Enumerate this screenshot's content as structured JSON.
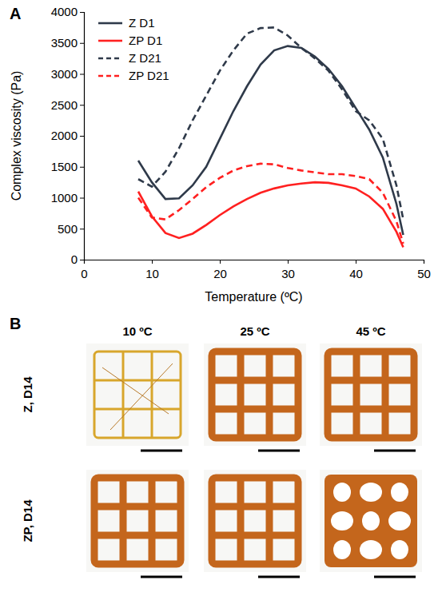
{
  "chart_data": {
    "type": "line",
    "panel_label": "A",
    "x_label": "Temperature (ºC)",
    "y_label": "Complex viscosity (Pa)",
    "x": [
      8,
      10,
      12,
      14,
      16,
      18,
      20,
      22,
      24,
      26,
      28,
      30,
      32,
      34,
      36,
      38,
      40,
      42,
      44,
      46,
      47
    ],
    "series": [
      {
        "name": "Z D1",
        "color": "#2f3a4a",
        "line_style": "solid",
        "values": [
          1600,
          1250,
          980,
          990,
          1200,
          1500,
          1950,
          2400,
          2800,
          3150,
          3380,
          3450,
          3420,
          3280,
          3080,
          2800,
          2450,
          2100,
          1650,
          900,
          400
        ]
      },
      {
        "name": "ZP D1",
        "color": "#ff2020",
        "line_style": "solid",
        "values": [
          1100,
          700,
          430,
          350,
          420,
          560,
          720,
          860,
          980,
          1080,
          1150,
          1200,
          1230,
          1250,
          1240,
          1200,
          1150,
          1020,
          820,
          450,
          200
        ]
      },
      {
        "name": "Z D21",
        "color": "#2f3a4a",
        "line_style": "dashed",
        "values": [
          1300,
          1180,
          1420,
          1800,
          2250,
          2650,
          3050,
          3380,
          3650,
          3740,
          3750,
          3620,
          3420,
          3250,
          3050,
          2750,
          2400,
          2250,
          1950,
          1200,
          650
        ]
      },
      {
        "name": "ZP D21",
        "color": "#ff2020",
        "line_style": "dashed",
        "values": [
          1000,
          680,
          650,
          800,
          980,
          1170,
          1320,
          1440,
          1510,
          1550,
          1540,
          1480,
          1440,
          1410,
          1380,
          1380,
          1350,
          1300,
          1080,
          620,
          260
        ]
      }
    ],
    "xlim": [
      0,
      50
    ],
    "xticks": [
      0,
      10,
      20,
      30,
      40,
      50
    ],
    "ylim": [
      0,
      4000
    ],
    "yticks": [
      0,
      500,
      1000,
      1500,
      2000,
      2500,
      3000,
      3500,
      4000
    ],
    "legend": "upper left",
    "grid": false
  },
  "photo_panel": {
    "panel_label": "B",
    "columns": [
      "10 ºC",
      "25 ºC",
      "45 ºC"
    ],
    "rows": [
      "Z, D14",
      "ZP, D14"
    ]
  }
}
